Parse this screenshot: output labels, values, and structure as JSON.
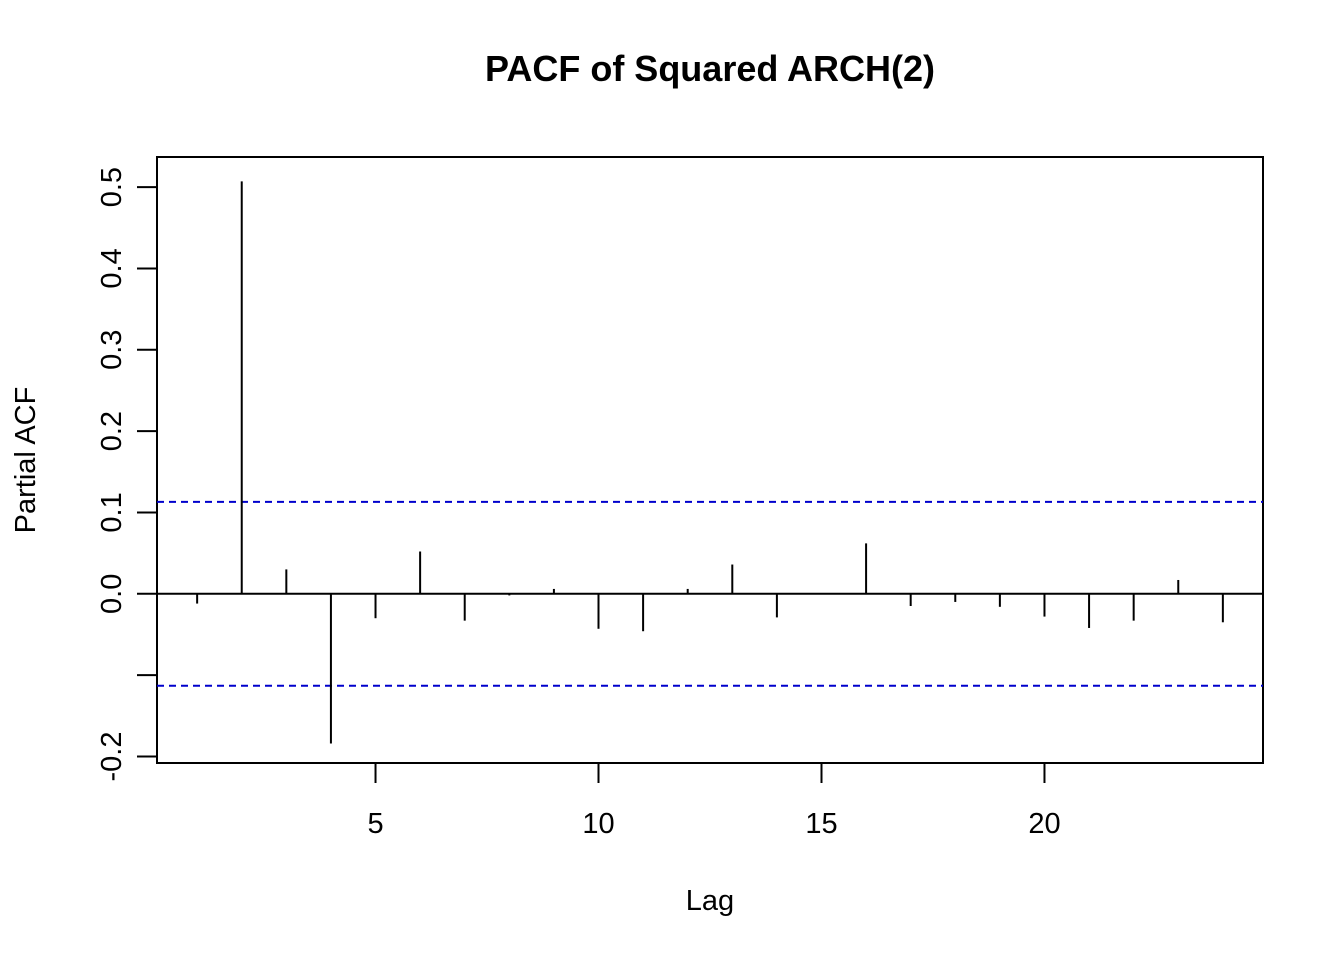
{
  "chart_data": {
    "type": "bar",
    "title": "PACF of Squared ARCH(2)",
    "xlabel": "Lag",
    "ylabel": "Partial ACF",
    "lags": [
      1,
      2,
      3,
      4,
      5,
      6,
      7,
      8,
      9,
      10,
      11,
      12,
      13,
      14,
      15,
      16,
      17,
      18,
      19,
      20,
      21,
      22,
      23,
      24
    ],
    "values": [
      -0.012,
      0.507,
      0.03,
      -0.184,
      -0.03,
      0.052,
      -0.033,
      -0.002,
      0.006,
      -0.043,
      -0.046,
      0.006,
      0.036,
      -0.029,
      0.0,
      0.062,
      -0.015,
      -0.01,
      -0.016,
      -0.028,
      -0.042,
      -0.033,
      0.017,
      -0.035
    ],
    "confidence_bound": 0.113,
    "xlim": [
      0.1,
      24.9
    ],
    "ylim": [
      -0.208,
      0.537
    ],
    "x_ticks": [
      5,
      10,
      15,
      20
    ],
    "y_ticks": [
      -0.2,
      -0.1,
      0.0,
      0.1,
      0.2,
      0.3,
      0.4,
      0.5
    ],
    "y_tick_labels": [
      "-0.2",
      "",
      "0.0",
      "0.1",
      "0.2",
      "0.3",
      "0.4",
      "0.5"
    ],
    "x_tick_labels": [
      "5",
      "10",
      "15",
      "20"
    ],
    "grid": false,
    "colors": {
      "bars": "#000000",
      "confidence_lines": "#0000cc",
      "zero_line": "#000000"
    }
  }
}
